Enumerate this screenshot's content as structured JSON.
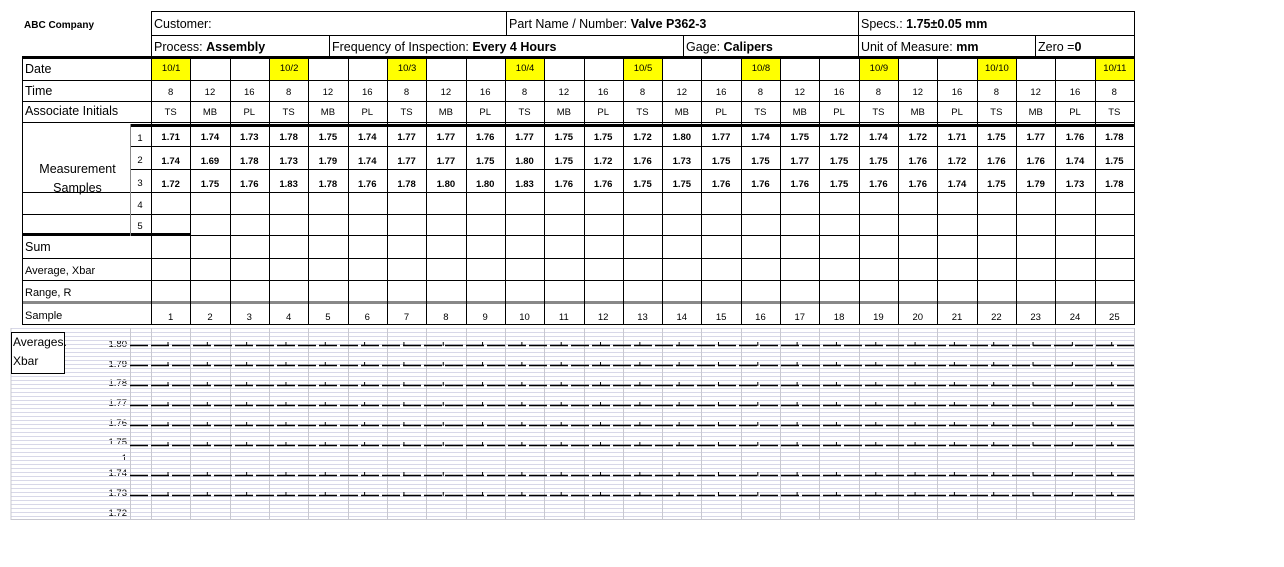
{
  "company": "ABC Company",
  "customer_label": "Customer:",
  "part_label": "Part Name / Number: ",
  "part_value": "Valve P362-3",
  "specs_label": "Specs.: ",
  "specs_value": "1.75±0.05 mm",
  "process_label": "Process: ",
  "process_value": "Assembly",
  "frequency_label": "Frequency of Inspection: ",
  "frequency_value": "Every 4 Hours",
  "gage_label": "Gage: ",
  "gage_value": "Calipers",
  "unit_label": "Unit of Measure: ",
  "unit_value": "mm",
  "zero_label": "Zero =",
  "zero_value": "0",
  "row_labels": {
    "date": "Date",
    "time": "Time",
    "initials": "Associate Initials",
    "measurement": "Measurement Samples",
    "sum": "Sum",
    "average": "Average, Xbar",
    "range": "Range, R",
    "sample": "Sample",
    "averages_chart": "Averages. Xbar"
  },
  "sample_row_numbers": [
    "1",
    "2",
    "3",
    "4",
    "5"
  ],
  "highlight_color": "#ffff00",
  "columns": [
    {
      "date": "10/1",
      "time": "8",
      "initials": "TS",
      "m": [
        "1.71",
        "1.74",
        "1.72"
      ],
      "sample": "1"
    },
    {
      "date": "",
      "time": "12",
      "initials": "MB",
      "m": [
        "1.74",
        "1.69",
        "1.75"
      ],
      "sample": "2"
    },
    {
      "date": "",
      "time": "16",
      "initials": "PL",
      "m": [
        "1.73",
        "1.78",
        "1.76"
      ],
      "sample": "3"
    },
    {
      "date": "10/2",
      "time": "8",
      "initials": "TS",
      "m": [
        "1.78",
        "1.73",
        "1.83"
      ],
      "sample": "4"
    },
    {
      "date": "",
      "time": "12",
      "initials": "MB",
      "m": [
        "1.75",
        "1.79",
        "1.78"
      ],
      "sample": "5"
    },
    {
      "date": "",
      "time": "16",
      "initials": "PL",
      "m": [
        "1.74",
        "1.74",
        "1.76"
      ],
      "sample": "6"
    },
    {
      "date": "10/3",
      "time": "8",
      "initials": "TS",
      "m": [
        "1.77",
        "1.77",
        "1.78"
      ],
      "sample": "7"
    },
    {
      "date": "",
      "time": "12",
      "initials": "MB",
      "m": [
        "1.77",
        "1.77",
        "1.80"
      ],
      "sample": "8"
    },
    {
      "date": "",
      "time": "16",
      "initials": "PL",
      "m": [
        "1.76",
        "1.75",
        "1.80"
      ],
      "sample": "9"
    },
    {
      "date": "10/4",
      "time": "8",
      "initials": "TS",
      "m": [
        "1.77",
        "1.80",
        "1.83"
      ],
      "sample": "10"
    },
    {
      "date": "",
      "time": "12",
      "initials": "MB",
      "m": [
        "1.75",
        "1.75",
        "1.76"
      ],
      "sample": "11"
    },
    {
      "date": "",
      "time": "16",
      "initials": "PL",
      "m": [
        "1.75",
        "1.72",
        "1.76"
      ],
      "sample": "12"
    },
    {
      "date": "10/5",
      "time": "8",
      "initials": "TS",
      "m": [
        "1.72",
        "1.76",
        "1.75"
      ],
      "sample": "13"
    },
    {
      "date": "",
      "time": "12",
      "initials": "MB",
      "m": [
        "1.80",
        "1.73",
        "1.75"
      ],
      "sample": "14"
    },
    {
      "date": "",
      "time": "16",
      "initials": "PL",
      "m": [
        "1.77",
        "1.75",
        "1.76"
      ],
      "sample": "15"
    },
    {
      "date": "10/8",
      "time": "8",
      "initials": "TS",
      "m": [
        "1.74",
        "1.75",
        "1.76"
      ],
      "sample": "16"
    },
    {
      "date": "",
      "time": "12",
      "initials": "MB",
      "m": [
        "1.75",
        "1.77",
        "1.76"
      ],
      "sample": "17"
    },
    {
      "date": "",
      "time": "16",
      "initials": "PL",
      "m": [
        "1.72",
        "1.75",
        "1.75"
      ],
      "sample": "18"
    },
    {
      "date": "10/9",
      "time": "8",
      "initials": "TS",
      "m": [
        "1.74",
        "1.75",
        "1.76"
      ],
      "sample": "19"
    },
    {
      "date": "",
      "time": "12",
      "initials": "MB",
      "m": [
        "1.72",
        "1.76",
        "1.76"
      ],
      "sample": "20"
    },
    {
      "date": "",
      "time": "16",
      "initials": "PL",
      "m": [
        "1.71",
        "1.72",
        "1.74"
      ],
      "sample": "21"
    },
    {
      "date": "10/10",
      "time": "8",
      "initials": "TS",
      "m": [
        "1.75",
        "1.76",
        "1.75"
      ],
      "sample": "22"
    },
    {
      "date": "",
      "time": "12",
      "initials": "MB",
      "m": [
        "1.77",
        "1.76",
        "1.79"
      ],
      "sample": "23"
    },
    {
      "date": "",
      "time": "16",
      "initials": "PL",
      "m": [
        "1.76",
        "1.74",
        "1.73"
      ],
      "sample": "24"
    },
    {
      "date": "10/11",
      "time": "8",
      "initials": "TS",
      "m": [
        "1.78",
        "1.75",
        "1.78"
      ],
      "sample": "25"
    }
  ],
  "chart_axis_labels": [
    "1.80",
    "1.79",
    "1.78",
    "1.77",
    "1.76",
    "1.75",
    "1",
    "1.74",
    "1.73",
    "1.72"
  ]
}
